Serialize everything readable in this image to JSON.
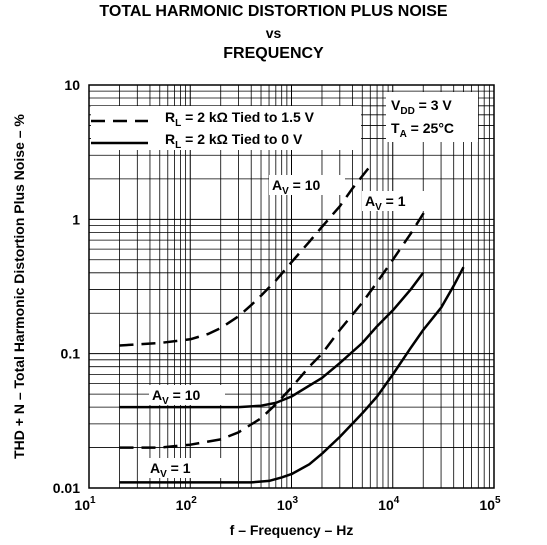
{
  "chart_data": {
    "type": "line",
    "title": [
      "TOTAL HARMONIC DISTORTION PLUS NOISE",
      "vs",
      "FREQUENCY"
    ],
    "xlabel": "f – Frequency – Hz",
    "ylabel": "THD + N – Total Harmonic Distortion Plus Noise – %",
    "x_scale": "log",
    "y_scale": "log",
    "xlim": [
      10,
      100000
    ],
    "ylim": [
      0.01,
      10
    ],
    "x_ticks": [
      {
        "value": 10,
        "base": "10",
        "exp": "1"
      },
      {
        "value": 100,
        "base": "10",
        "exp": "2"
      },
      {
        "value": 1000,
        "base": "10",
        "exp": "3"
      },
      {
        "value": 10000,
        "base": "10",
        "exp": "4"
      },
      {
        "value": 100000,
        "base": "10",
        "exp": "5"
      }
    ],
    "y_ticks": [
      {
        "value": 10,
        "label": "10"
      },
      {
        "value": 1,
        "label": "1"
      },
      {
        "value": 0.1,
        "label": "0.1"
      },
      {
        "value": 0.01,
        "label": "0.01"
      }
    ],
    "grid": true,
    "legend": {
      "position": "top-left",
      "entries": [
        {
          "style": "dashed",
          "R": "R",
          "sub": "L",
          "rest": " = 2 kΩ Tied to 1.5 V"
        },
        {
          "style": "solid",
          "R": "R",
          "sub": "L",
          "rest": " = 2 kΩ Tied to 0 V"
        }
      ]
    },
    "conditions": [
      {
        "main": "V",
        "sub": "DD",
        "rest": " = 3 V"
      },
      {
        "main": "T",
        "sub": "A",
        "rest": " = 25°C"
      }
    ],
    "series": [
      {
        "style": "dashed",
        "label": {
          "main": "A",
          "sub": "V",
          "rest": " = 10"
        },
        "points": [
          [
            20,
            0.115
          ],
          [
            50,
            0.12
          ],
          [
            100,
            0.128
          ],
          [
            150,
            0.14
          ],
          [
            200,
            0.155
          ],
          [
            300,
            0.19
          ],
          [
            400,
            0.23
          ],
          [
            500,
            0.27
          ],
          [
            700,
            0.35
          ],
          [
            1000,
            0.48
          ],
          [
            1500,
            0.68
          ],
          [
            2000,
            0.88
          ],
          [
            3000,
            1.25
          ],
          [
            4000,
            1.7
          ],
          [
            5000,
            2.1
          ],
          [
            6000,
            2.5
          ]
        ]
      },
      {
        "style": "dashed",
        "label": {
          "main": "A",
          "sub": "V",
          "rest": " = 1"
        },
        "points": [
          [
            20,
            0.02
          ],
          [
            50,
            0.02
          ],
          [
            100,
            0.021
          ],
          [
            200,
            0.023
          ],
          [
            300,
            0.026
          ],
          [
            500,
            0.033
          ],
          [
            700,
            0.042
          ],
          [
            1000,
            0.056
          ],
          [
            1500,
            0.08
          ],
          [
            2000,
            0.1
          ],
          [
            3000,
            0.15
          ],
          [
            5000,
            0.24
          ],
          [
            7000,
            0.34
          ],
          [
            10000,
            0.5
          ],
          [
            15000,
            0.78
          ],
          [
            20000,
            1.1
          ],
          [
            25000,
            1.7
          ]
        ]
      },
      {
        "style": "solid",
        "label": {
          "main": "A",
          "sub": "V",
          "rest": " = 10"
        },
        "points": [
          [
            20,
            0.04
          ],
          [
            50,
            0.04
          ],
          [
            100,
            0.04
          ],
          [
            200,
            0.04
          ],
          [
            300,
            0.04
          ],
          [
            500,
            0.041
          ],
          [
            700,
            0.043
          ],
          [
            1000,
            0.048
          ],
          [
            2000,
            0.066
          ],
          [
            3000,
            0.085
          ],
          [
            5000,
            0.12
          ],
          [
            7000,
            0.16
          ],
          [
            10000,
            0.21
          ],
          [
            15000,
            0.3
          ],
          [
            20000,
            0.4
          ]
        ]
      },
      {
        "style": "solid",
        "label": {
          "main": "A",
          "sub": "V",
          "rest": " = 1"
        },
        "points": [
          [
            20,
            0.011
          ],
          [
            50,
            0.011
          ],
          [
            100,
            0.011
          ],
          [
            200,
            0.011
          ],
          [
            400,
            0.011
          ],
          [
            600,
            0.0113
          ],
          [
            800,
            0.012
          ],
          [
            1000,
            0.0127
          ],
          [
            1500,
            0.015
          ],
          [
            2000,
            0.018
          ],
          [
            3000,
            0.024
          ],
          [
            5000,
            0.036
          ],
          [
            7000,
            0.048
          ],
          [
            10000,
            0.07
          ],
          [
            15000,
            0.11
          ],
          [
            20000,
            0.15
          ],
          [
            30000,
            0.22
          ],
          [
            40000,
            0.32
          ],
          [
            50000,
            0.44
          ]
        ]
      }
    ]
  }
}
